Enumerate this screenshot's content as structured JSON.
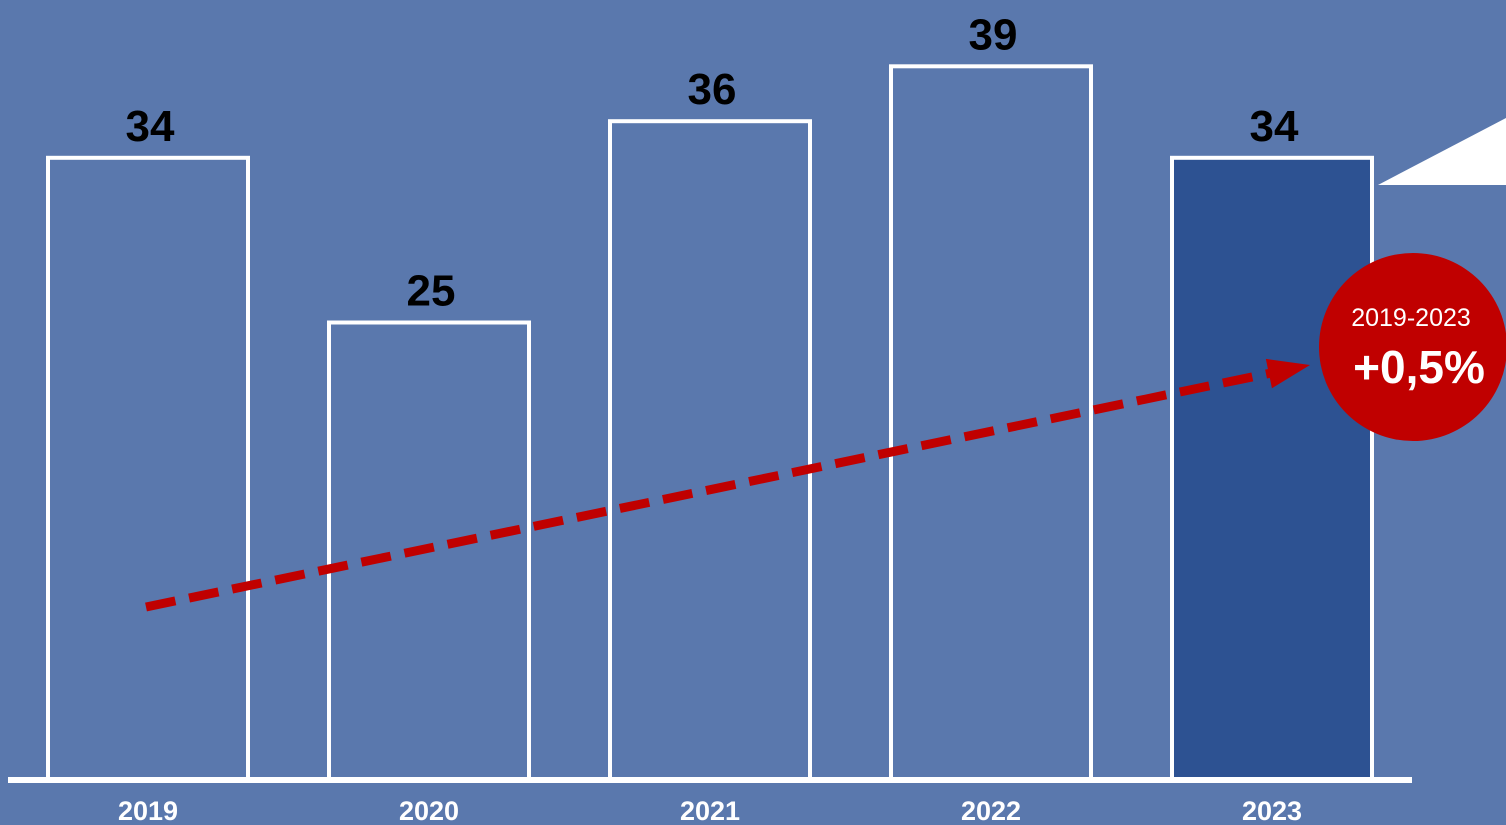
{
  "chart_data": {
    "type": "bar",
    "categories": [
      "2019",
      "2020",
      "2021",
      "2022",
      "2023"
    ],
    "values": [
      34,
      25,
      36,
      39,
      34
    ],
    "value_labels": [
      "34",
      "25",
      "36",
      "39",
      "34"
    ],
    "highlight_category": "2023",
    "trend": {
      "from_category": "2019",
      "to_category": "2023",
      "style": "dashed-arrow"
    },
    "badge": {
      "period": "2019-2023",
      "change": "+0,5%"
    },
    "grid": false,
    "legend": "none"
  },
  "colors": {
    "background": "#5a78ad",
    "bar_outline": "#ffffff",
    "highlight_fill": "#2d5292",
    "trend_arrow": "#c00000",
    "badge_fill": "#c00000",
    "value_text": "#000000",
    "axis_text": "#ffffff"
  }
}
